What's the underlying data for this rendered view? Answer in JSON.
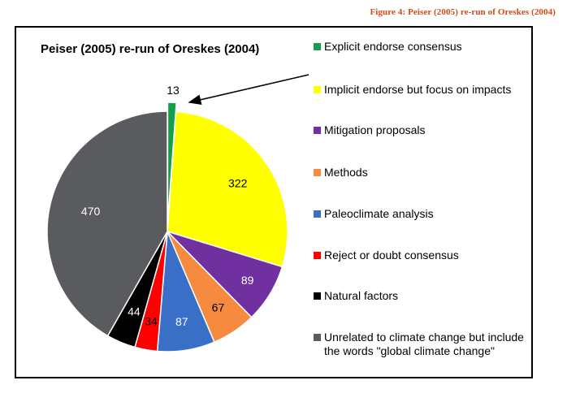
{
  "caption": "Figure 4: Peiser (2005) re-run of Oreskes (2004)",
  "chart_data": {
    "type": "pie",
    "title": "Peiser (2005) re-run of Oreskes (2004)",
    "legend_position": "right",
    "slices": [
      {
        "label": "Explicit endorse consensus",
        "value": 13,
        "color": "#14a04a",
        "label_color": "#000000"
      },
      {
        "label": "Implicit endorse but focus on impacts",
        "value": 322,
        "color": "#ffff00",
        "label_color": "#000000"
      },
      {
        "label": "Mitigation proposals",
        "value": 89,
        "color": "#7030a0",
        "label_color": "#ffffff"
      },
      {
        "label": "Methods",
        "value": 67,
        "color": "#f68b3f",
        "label_color": "#000000"
      },
      {
        "label": "Paleoclimate analysis",
        "value": 87,
        "color": "#3a6fc8",
        "label_color": "#ffffff"
      },
      {
        "label": "Reject or doubt consensus",
        "value": 34,
        "color": "#ff0000",
        "label_color": "#000000"
      },
      {
        "label": "Natural factors",
        "value": 44,
        "color": "#000000",
        "label_color": "#ffffff"
      },
      {
        "label": "Unrelated to climate change but include the words \"global climate change\"",
        "value": 470,
        "color": "#595b5e",
        "label_color": "#ffffff"
      }
    ]
  }
}
